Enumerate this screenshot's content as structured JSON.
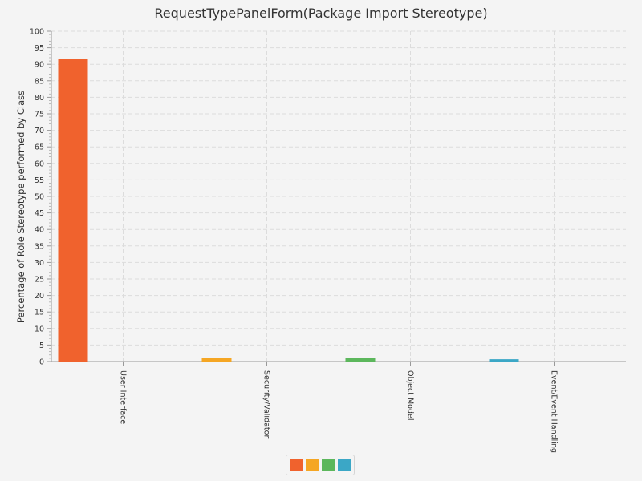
{
  "chart_data": {
    "type": "bar",
    "title": "RequestTypePanelForm(Package Import Stereotype)",
    "xlabel": "",
    "ylabel": "Percentage of Role Stereotype performed by Class",
    "categories": [
      "User Interface",
      "Security/Validator",
      "Object Model",
      "Event/Event Handling"
    ],
    "values": [
      91.7,
      1.2,
      1.2,
      0.7
    ],
    "ylim": [
      0,
      100
    ],
    "ytick_step": 5,
    "colors": [
      "#f0622d",
      "#f5a623",
      "#5cb75c",
      "#3ba7c6"
    ],
    "grid": true,
    "legend": "bottom-center"
  }
}
